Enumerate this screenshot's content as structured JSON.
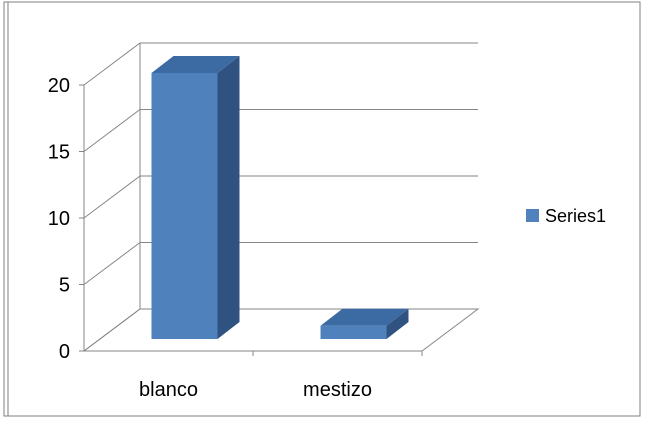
{
  "chart_data": {
    "type": "bar",
    "categories": [
      "blanco",
      "mestizo"
    ],
    "series": [
      {
        "name": "Series1",
        "values": [
          20,
          1
        ]
      }
    ],
    "ylim": [
      0,
      20
    ],
    "y_ticks": [
      0,
      5,
      10,
      15,
      20
    ],
    "grid": true,
    "legend_position": "right",
    "style": "3d-column",
    "colors": {
      "bar_front": "#4f81bd",
      "bar_side": "#2f5280",
      "bar_top": "#3c6aa3",
      "gridline": "#868686",
      "border": "#7f7f7f"
    }
  }
}
